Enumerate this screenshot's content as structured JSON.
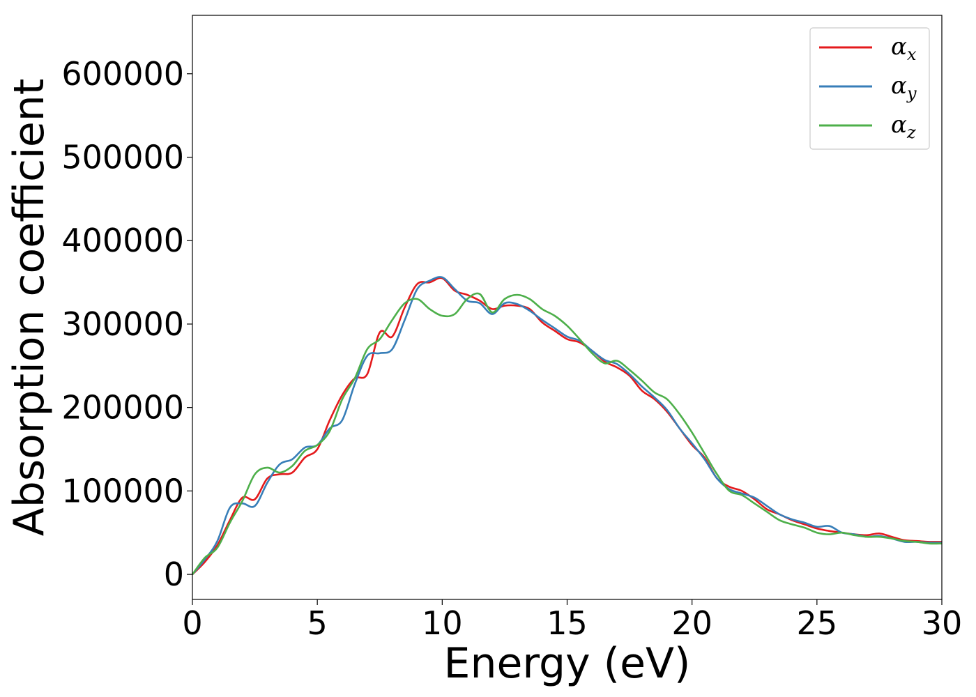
{
  "chart_data": {
    "type": "line",
    "xlabel": "Energy (eV)",
    "ylabel": "Absorption coefficient",
    "xlim": [
      0,
      30
    ],
    "ylim": [
      -30000,
      670000
    ],
    "xticks": [
      0,
      5,
      10,
      15,
      20,
      25,
      30
    ],
    "yticks": [
      0,
      100000,
      200000,
      300000,
      400000,
      500000,
      600000
    ],
    "xtick_labels": [
      "0",
      "5",
      "10",
      "15",
      "20",
      "25",
      "30"
    ],
    "ytick_labels": [
      "0",
      "100000",
      "200000",
      "300000",
      "400000",
      "500000",
      "600000"
    ],
    "grid": false,
    "legend_position": "top-right",
    "series": [
      {
        "name": "αx",
        "legend_main": "α",
        "legend_sub": "x",
        "color": "#e41a1c",
        "x": [
          0,
          0.5,
          1.0,
          1.5,
          2.0,
          2.5,
          3.0,
          3.5,
          4.0,
          4.5,
          5.0,
          5.5,
          6.0,
          6.5,
          7.0,
          7.5,
          8.0,
          8.5,
          9.0,
          9.5,
          10.0,
          10.5,
          11.0,
          11.5,
          12.0,
          12.5,
          13.0,
          13.5,
          14.0,
          14.5,
          15.0,
          15.5,
          16.0,
          16.5,
          17.0,
          17.5,
          18.0,
          18.5,
          19.0,
          19.5,
          20.0,
          20.5,
          21.0,
          21.5,
          22.0,
          22.5,
          23.0,
          23.5,
          24.0,
          24.5,
          25.0,
          25.5,
          26.0,
          26.5,
          27.0,
          27.5,
          28.0,
          28.5,
          29.0,
          29.5,
          30.0
        ],
        "y": [
          0,
          15000,
          35000,
          65000,
          92000,
          90000,
          115000,
          120000,
          122000,
          140000,
          150000,
          185000,
          215000,
          235000,
          240000,
          290000,
          285000,
          320000,
          348000,
          350000,
          355000,
          340000,
          335000,
          328000,
          318000,
          322000,
          322000,
          318000,
          302000,
          292000,
          282000,
          278000,
          268000,
          255000,
          248000,
          238000,
          220000,
          210000,
          195000,
          175000,
          155000,
          140000,
          115000,
          105000,
          100000,
          90000,
          78000,
          72000,
          65000,
          60000,
          55000,
          52000,
          50000,
          48000,
          47000,
          49000,
          45000,
          41000,
          40000,
          39000,
          39000
        ]
      },
      {
        "name": "αy",
        "legend_main": "α",
        "legend_sub": "y",
        "color": "#377eb8",
        "x": [
          0,
          0.5,
          1.0,
          1.5,
          2.0,
          2.5,
          3.0,
          3.5,
          4.0,
          4.5,
          5.0,
          5.5,
          6.0,
          6.5,
          7.0,
          7.5,
          8.0,
          8.5,
          9.0,
          9.5,
          10.0,
          10.5,
          11.0,
          11.5,
          12.0,
          12.5,
          13.0,
          13.5,
          14.0,
          14.5,
          15.0,
          15.5,
          16.0,
          16.5,
          17.0,
          17.5,
          18.0,
          18.5,
          19.0,
          19.5,
          20.0,
          20.5,
          21.0,
          21.5,
          22.0,
          22.5,
          23.0,
          23.5,
          24.0,
          24.5,
          25.0,
          25.5,
          26.0,
          26.5,
          27.0,
          27.5,
          28.0,
          28.5,
          29.0,
          29.5,
          30.0
        ],
        "y": [
          0,
          18000,
          40000,
          80000,
          85000,
          82000,
          110000,
          132000,
          138000,
          152000,
          155000,
          175000,
          185000,
          228000,
          262000,
          265000,
          270000,
          305000,
          342000,
          352000,
          356000,
          342000,
          328000,
          325000,
          312000,
          325000,
          324000,
          316000,
          305000,
          295000,
          285000,
          280000,
          268000,
          257000,
          252000,
          240000,
          225000,
          212000,
          197000,
          175000,
          157000,
          138000,
          115000,
          102000,
          97000,
          92000,
          82000,
          72000,
          66000,
          62000,
          57000,
          58000,
          50000,
          48000,
          45000,
          46000,
          43000,
          39000,
          39000,
          38000,
          38000
        ]
      },
      {
        "name": "αz",
        "legend_main": "α",
        "legend_sub": "z",
        "color": "#4daf4a",
        "x": [
          0,
          0.5,
          1.0,
          1.5,
          2.0,
          2.5,
          3.0,
          3.5,
          4.0,
          4.5,
          5.0,
          5.5,
          6.0,
          6.5,
          7.0,
          7.5,
          8.0,
          8.5,
          9.0,
          9.5,
          10.0,
          10.5,
          11.0,
          11.5,
          12.0,
          12.5,
          13.0,
          13.5,
          14.0,
          14.5,
          15.0,
          15.5,
          16.0,
          16.5,
          17.0,
          17.5,
          18.0,
          18.5,
          19.0,
          19.5,
          20.0,
          20.5,
          21.0,
          21.5,
          22.0,
          22.5,
          23.0,
          23.5,
          24.0,
          24.5,
          25.0,
          25.5,
          26.0,
          26.5,
          27.0,
          27.5,
          28.0,
          28.5,
          29.0,
          29.5,
          30.0
        ],
        "y": [
          0,
          20000,
          32000,
          62000,
          88000,
          120000,
          128000,
          122000,
          130000,
          148000,
          155000,
          172000,
          210000,
          235000,
          270000,
          282000,
          305000,
          325000,
          330000,
          318000,
          310000,
          312000,
          330000,
          336000,
          314000,
          330000,
          335000,
          330000,
          318000,
          310000,
          298000,
          282000,
          265000,
          253000,
          256000,
          245000,
          232000,
          218000,
          210000,
          192000,
          170000,
          145000,
          120000,
          100000,
          95000,
          85000,
          75000,
          65000,
          60000,
          56000,
          50000,
          48000,
          50000,
          47000,
          45000,
          45000,
          43000,
          40000,
          39000,
          37000,
          37000
        ]
      }
    ]
  }
}
